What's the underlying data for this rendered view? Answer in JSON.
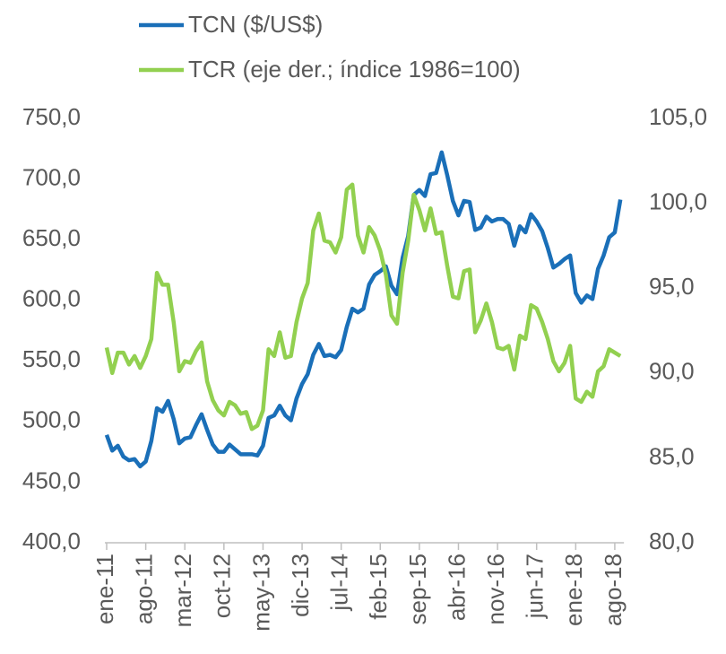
{
  "chart_data": {
    "type": "line",
    "categories": [
      "ene-11",
      null,
      null,
      null,
      null,
      null,
      null,
      "ago-11",
      null,
      null,
      null,
      null,
      null,
      null,
      "mar-12",
      null,
      null,
      null,
      null,
      null,
      null,
      "oct-12",
      null,
      null,
      null,
      null,
      null,
      null,
      "may-13",
      null,
      null,
      null,
      null,
      null,
      null,
      "dic-13",
      null,
      null,
      null,
      null,
      null,
      null,
      "jul-14",
      null,
      null,
      null,
      null,
      null,
      null,
      "feb-15",
      null,
      null,
      null,
      null,
      null,
      null,
      "sep-15",
      null,
      null,
      null,
      null,
      null,
      null,
      "abr-16",
      null,
      null,
      null,
      null,
      null,
      null,
      "nov-16",
      null,
      null,
      null,
      null,
      null,
      null,
      "jun-17",
      null,
      null,
      null,
      null,
      null,
      null,
      "ene-18",
      null,
      null,
      null,
      null,
      null,
      null,
      "ago-18",
      null
    ],
    "series": [
      {
        "name": "TCN ($/US$)",
        "color": "#1a6fb8",
        "values": [
          489,
          476,
          480,
          471,
          468,
          469,
          463,
          467,
          484,
          511,
          508,
          517,
          502,
          482,
          486,
          487,
          497,
          506,
          493,
          481,
          475,
          475,
          481,
          477,
          473,
          473,
          473,
          472,
          480,
          503,
          505,
          513,
          505,
          501,
          519,
          531,
          539,
          555,
          564,
          554,
          555,
          553,
          559,
          578,
          593,
          590,
          593,
          613,
          621,
          624,
          628,
          612,
          605,
          635,
          653,
          687,
          691,
          686,
          704,
          705,
          722,
          703,
          682,
          670,
          682,
          681,
          658,
          660,
          669,
          665,
          667,
          667,
          663,
          645,
          661,
          656,
          671,
          665,
          657,
          643,
          627,
          630,
          634,
          637,
          606,
          598,
          604,
          601,
          626,
          637,
          652,
          656,
          683
        ]
      },
      {
        "name": "TCR (eje der.; índice 1986=100)",
        "color": "#92d050",
        "axis": "y2",
        "values": [
          91.5,
          90.0,
          91.2,
          91.2,
          90.5,
          91.0,
          90.3,
          91.0,
          92.0,
          95.9,
          95.2,
          95.2,
          93.0,
          90.1,
          90.7,
          90.6,
          91.3,
          91.8,
          89.5,
          88.4,
          87.8,
          87.5,
          88.3,
          88.1,
          87.6,
          87.7,
          86.7,
          86.9,
          87.8,
          91.4,
          91.0,
          92.4,
          90.9,
          91.0,
          93.0,
          94.4,
          95.3,
          98.4,
          99.4,
          97.8,
          97.7,
          97.1,
          98.0,
          100.8,
          101.1,
          98.1,
          97.1,
          98.6,
          98.1,
          97.2,
          95.8,
          93.4,
          92.9,
          95.9,
          97.8,
          100.5,
          99.6,
          98.4,
          99.7,
          98.2,
          98.3,
          96.3,
          94.5,
          94.4,
          96.0,
          96.1,
          92.4,
          93.1,
          94.1,
          93.0,
          91.5,
          91.4,
          91.6,
          90.2,
          92.2,
          92.0,
          94.0,
          93.8,
          93.0,
          92.0,
          90.7,
          90.1,
          90.6,
          91.6,
          88.5,
          88.3,
          88.9,
          88.6,
          90.1,
          90.4,
          91.4,
          91.2,
          91.0
        ]
      }
    ],
    "ylim": [
      400,
      750
    ],
    "yticks": [
      {
        "value": 400,
        "label": "400,0"
      },
      {
        "value": 450,
        "label": "450,0"
      },
      {
        "value": 500,
        "label": "500,0"
      },
      {
        "value": 550,
        "label": "550,0"
      },
      {
        "value": 600,
        "label": "600,0"
      },
      {
        "value": 650,
        "label": "650,0"
      },
      {
        "value": 700,
        "label": "700,0"
      },
      {
        "value": 750,
        "label": "750,0"
      }
    ],
    "y2lim": [
      80,
      105
    ],
    "y2ticks": [
      {
        "value": 80,
        "label": "80,0"
      },
      {
        "value": 85,
        "label": "85,0"
      },
      {
        "value": 90,
        "label": "90,0"
      },
      {
        "value": 95,
        "label": "95,0"
      },
      {
        "value": 100,
        "label": "100,0"
      },
      {
        "value": 105,
        "label": "105,0"
      }
    ],
    "grid": false
  }
}
